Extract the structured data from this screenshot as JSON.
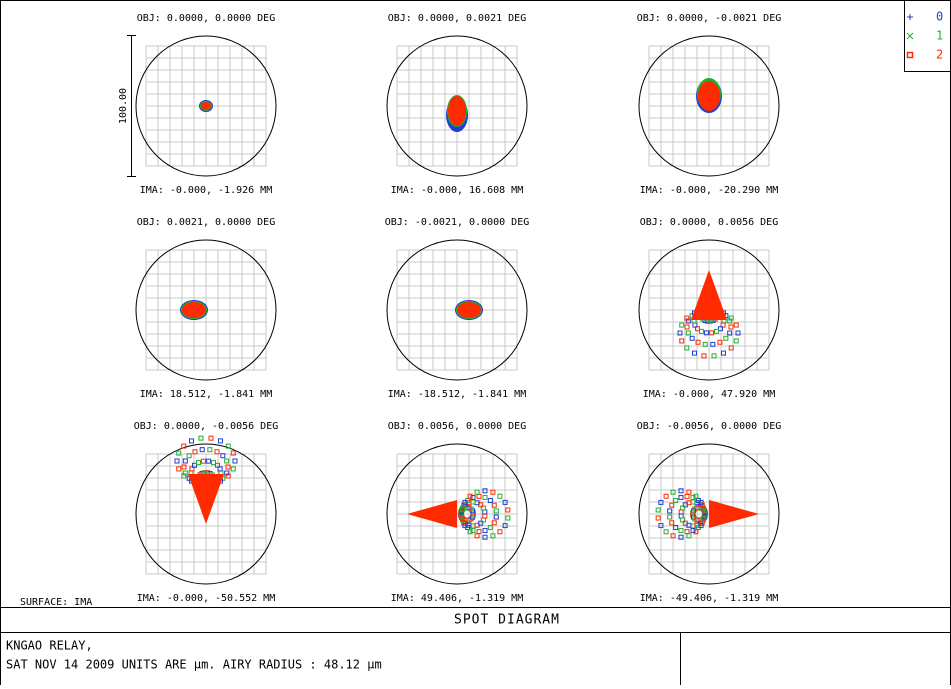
{
  "panels": [
    {
      "obj": "OBJ: 0.0000, 0.0000 DEG",
      "ima": "IMA: -0.000, -1.926 MM"
    },
    {
      "obj": "OBJ: 0.0000, 0.0021 DEG",
      "ima": "IMA: -0.000, 16.608 MM"
    },
    {
      "obj": "OBJ: 0.0000, -0.0021 DEG",
      "ima": "IMA: -0.000, -20.290 MM"
    },
    {
      "obj": "OBJ: 0.0021, 0.0000 DEG",
      "ima": "IMA: 18.512, -1.841 MM"
    },
    {
      "obj": "OBJ: -0.0021, 0.0000 DEG",
      "ima": "IMA: -18.512, -1.841 MM"
    },
    {
      "obj": "OBJ: 0.0000, 0.0056 DEG",
      "ima": "IMA: -0.000, 47.920 MM"
    },
    {
      "obj": "OBJ: 0.0000, -0.0056 DEG",
      "ima": "IMA: -0.000, -50.552 MM"
    },
    {
      "obj": "OBJ: 0.0056, 0.0000 DEG",
      "ima": "IMA: 49.406, -1.319 MM"
    },
    {
      "obj": "OBJ: -0.0056, 0.0000 DEG",
      "ima": "IMA: -49.406, -1.319 MM"
    }
  ],
  "scale_label": "100.00",
  "surface": "SURFACE: IMA",
  "legend": [
    "0",
    "1",
    "2"
  ],
  "title": "SPOT DIAGRAM",
  "info": [
    "KNGAO RELAY,",
    "SAT NOV 14 2009   UNITS ARE µm.   AIRY RADIUS : 48.12 µm"
  ]
}
